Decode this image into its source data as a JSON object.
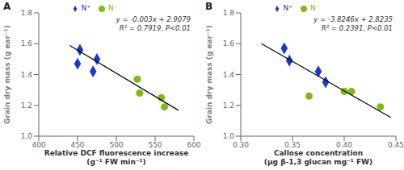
{
  "chart_data": [
    {
      "type": "scatter",
      "title": "A",
      "xlabel": "Relative DCF fluorescence increase\n(g⁻¹ FW min⁻¹)",
      "ylabel": "Grain dry mass (g ear⁻¹)",
      "annotations": [
        "y = -0.003x + 2.9079",
        "R² = 0.7919, P<0.01"
      ],
      "series": [
        {
          "name": "N⁺",
          "color": "#1a3acc",
          "marker": "diamond",
          "x": [
            450,
            453,
            470,
            475
          ],
          "values": [
            1.47,
            1.56,
            1.42,
            1.5
          ]
        },
        {
          "name": "N⁻",
          "color": "#80bb10",
          "marker": "circle",
          "x": [
            527,
            530,
            558,
            562
          ],
          "values": [
            1.37,
            1.28,
            1.25,
            1.19
          ]
        },
        {
          "type": "line",
          "color": "black",
          "x": [
            440,
            580
          ],
          "values": [
            1.5879,
            1.1679
          ]
        }
      ],
      "xlim": [
        400,
        600
      ],
      "ylim": [
        1.0,
        1.8
      ],
      "xticks": [
        400,
        450,
        500,
        550,
        600
      ],
      "yticks": [
        {
          "value": 1.0,
          "label": "1.0"
        },
        1.2,
        1.4,
        1.6,
        {
          "value": 1.8,
          "label": "1.8"
        }
      ],
      "legend": "top"
    },
    {
      "type": "scatter",
      "title": "B",
      "xlabel": "Callose concentration\n(μg β-1,3 glucan mg⁻¹ FW)",
      "ylabel": "Grain dry mass (g ear⁻¹)",
      "annotations": [
        "y = -3.8246x + 2.8235",
        "R² = 0.2391, P<0.01"
      ],
      "series": [
        {
          "name": "N⁺",
          "color": "#1a3acc",
          "marker": "diamond",
          "x": [
            0.342,
            0.347,
            0.375,
            0.382
          ],
          "values": [
            1.57,
            1.49,
            1.42,
            1.35
          ]
        },
        {
          "name": "N⁻",
          "color": "#80bb10",
          "marker": "circle",
          "x": [
            0.366,
            0.4,
            0.407,
            0.435
          ],
          "values": [
            1.26,
            1.29,
            1.29,
            1.19
          ]
        },
        {
          "type": "line",
          "color": "black",
          "x": [
            0.32,
            0.445
          ],
          "values": [
            1.599628,
            1.121553
          ]
        }
      ],
      "xlim": [
        0.3,
        0.45
      ],
      "ylim": [
        1.0,
        1.8
      ],
      "xticks": [
        {
          "value": 0.3,
          "label": "0.30"
        },
        0.35,
        {
          "value": 0.4,
          "label": "0.40"
        },
        0.45
      ],
      "yticks": [
        {
          "value": 1.0,
          "label": "1.0"
        },
        1.2,
        1.4,
        1.6,
        {
          "value": 1.8,
          "label": "1.8"
        }
      ],
      "legend": "top"
    }
  ]
}
